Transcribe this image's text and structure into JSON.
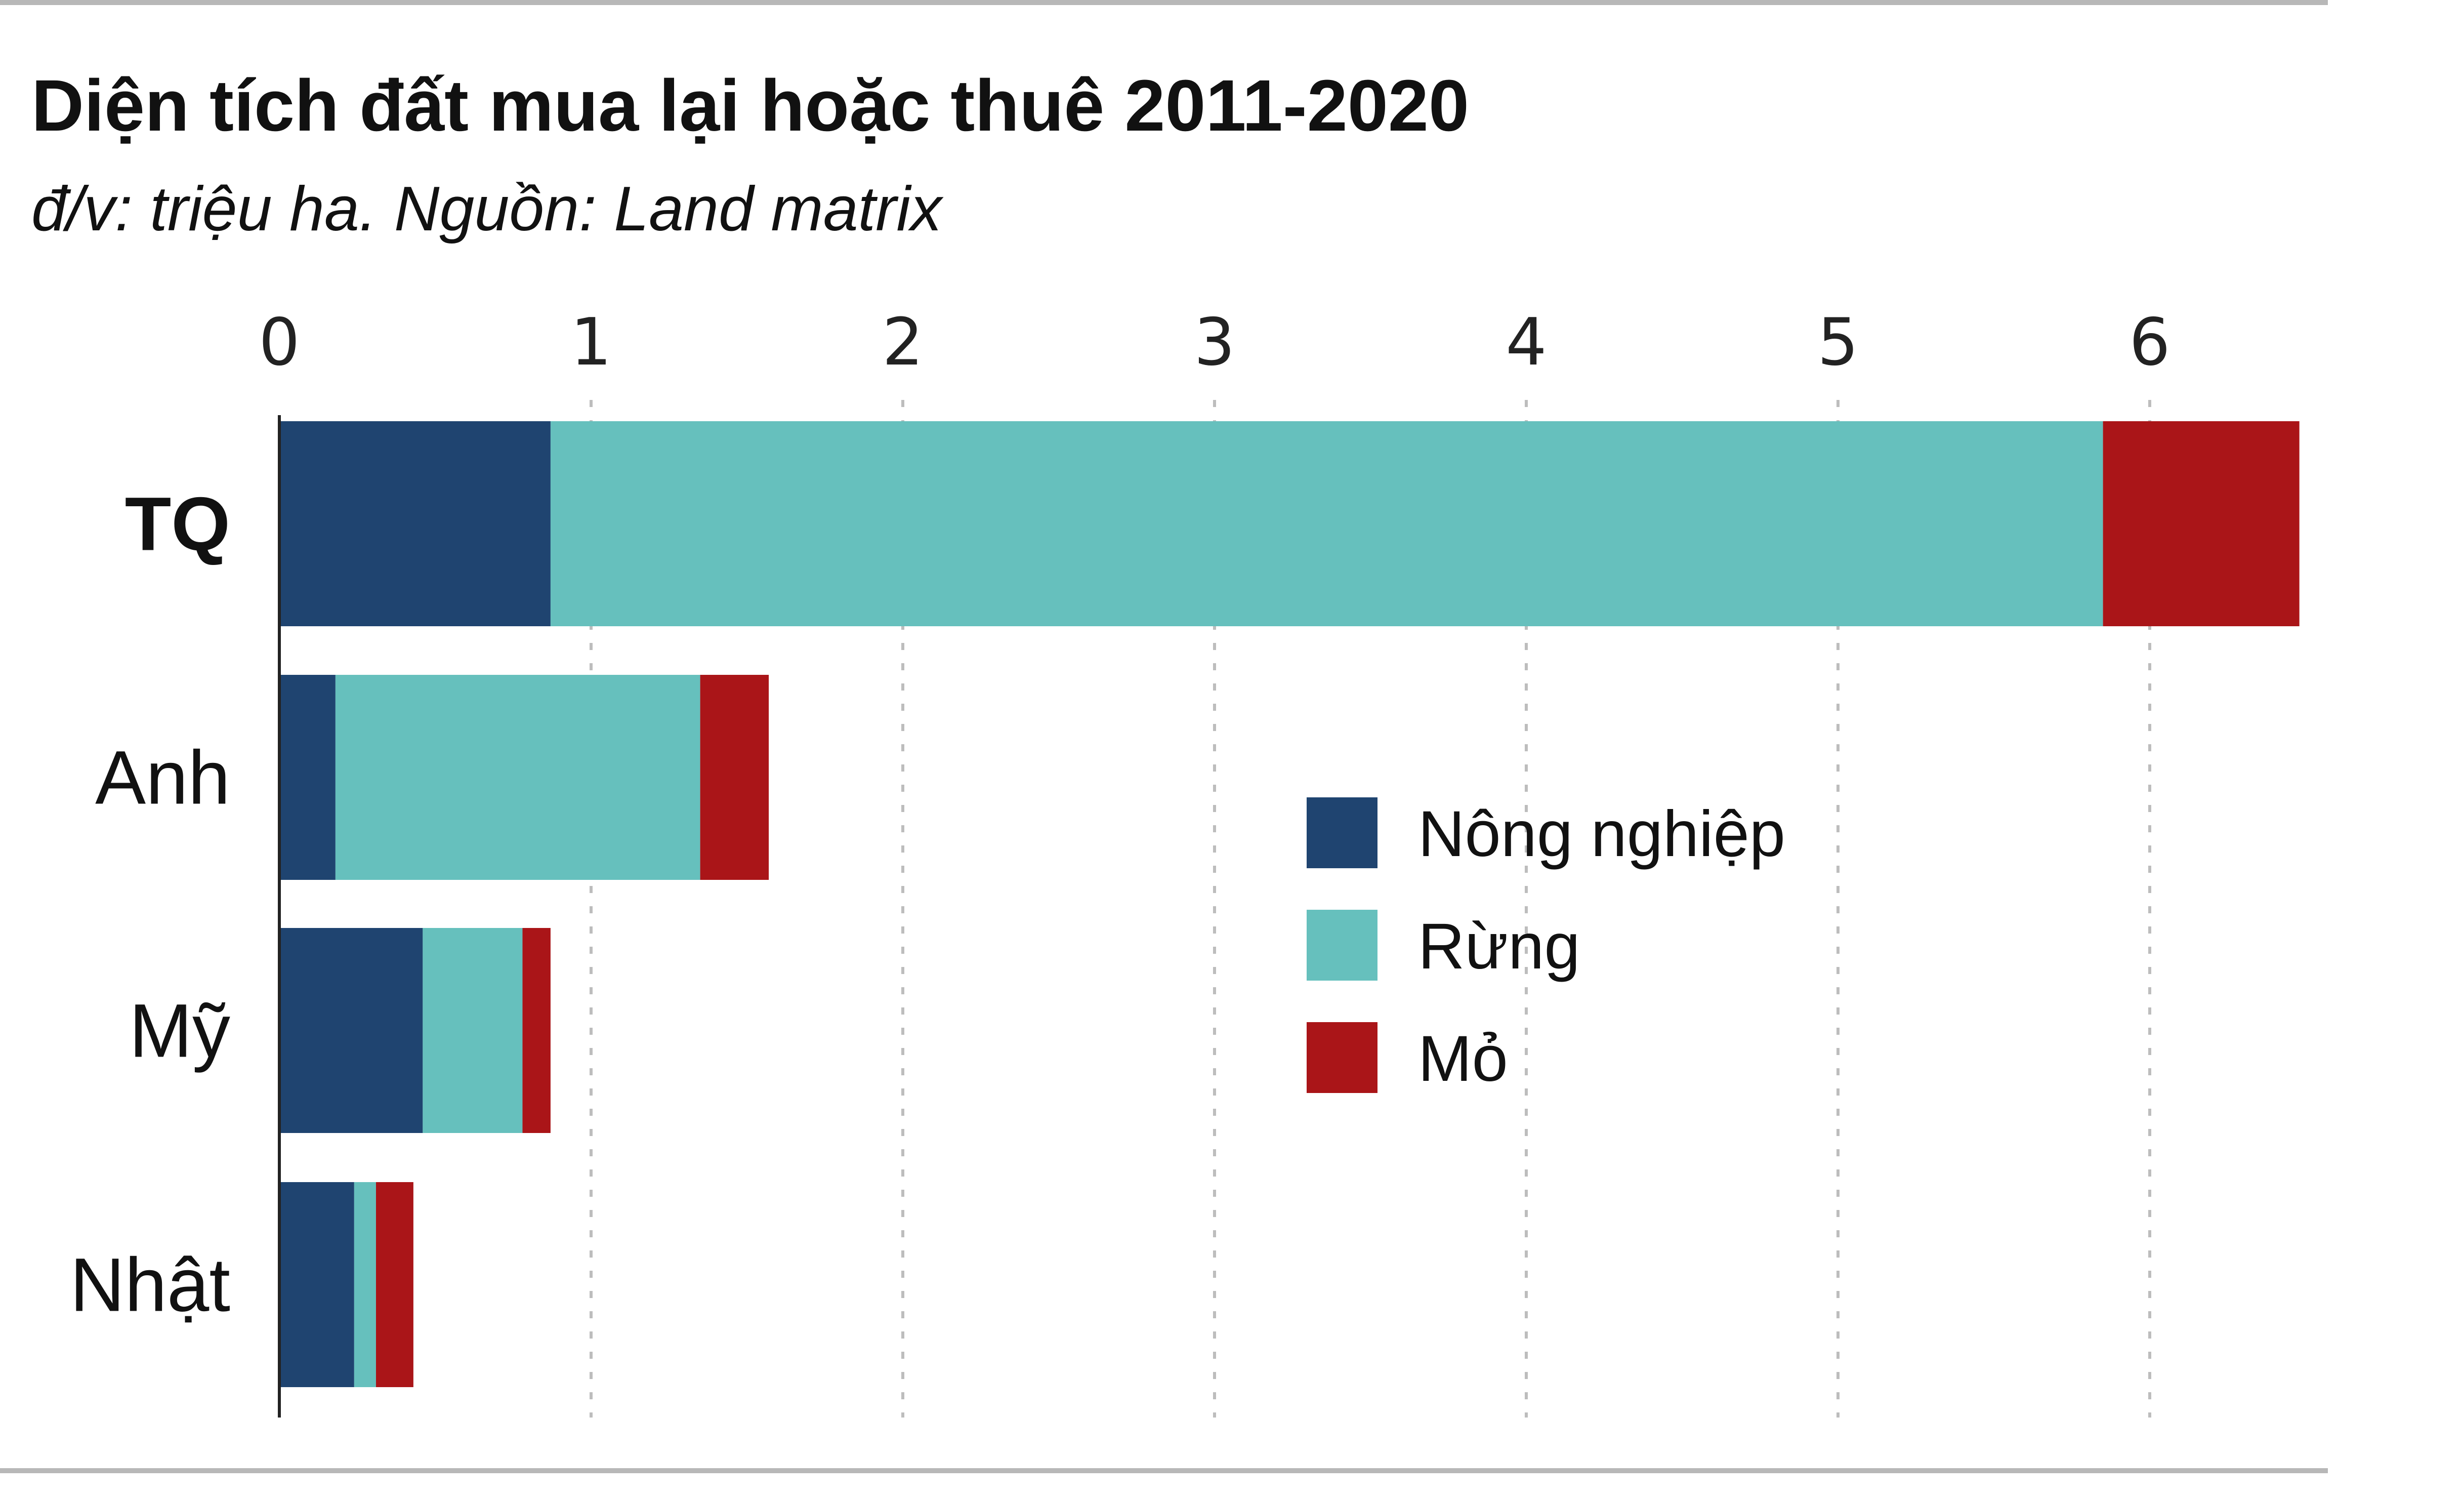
{
  "chart_data": {
    "type": "bar",
    "orientation": "horizontal",
    "stacked": true,
    "title": "Diện tích đất mua lại hoặc thuê 2011-2020",
    "subtitle": "đ/v: triệu ha. Nguồn: Land matrix",
    "categories": [
      "TQ",
      "Anh",
      "Mỹ",
      "Nhật"
    ],
    "emphasized_category": "TQ",
    "series": [
      {
        "name": "Nông nghiệp",
        "color": "#1f4470",
        "values": [
          0.87,
          0.18,
          0.46,
          0.24
        ]
      },
      {
        "name": "Rừng",
        "color": "#66c0bd",
        "values": [
          4.98,
          1.17,
          0.32,
          0.07
        ]
      },
      {
        "name": "Mỏ",
        "color": "#aa1518",
        "values": [
          0.63,
          0.22,
          0.09,
          0.12
        ]
      }
    ],
    "xlim": [
      0,
      6.5
    ],
    "xticks": [
      0,
      1,
      2,
      3,
      4,
      5,
      6
    ],
    "xaxis_position": "top",
    "grid": "vertical-dotted",
    "legend_position": "center-right"
  }
}
